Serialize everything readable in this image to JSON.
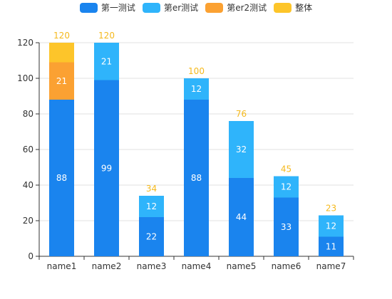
{
  "chart_data": {
    "type": "bar",
    "stacked": true,
    "categories": [
      "name1",
      "name2",
      "name3",
      "name4",
      "name5",
      "name6",
      "name7"
    ],
    "series": [
      {
        "name": "第一测试",
        "color": "#1a84ee",
        "values": [
          88,
          99,
          22,
          88,
          44,
          33,
          11
        ]
      },
      {
        "name": "第er测试",
        "color": "#2fb4fb",
        "values": [
          0,
          21,
          12,
          12,
          32,
          12,
          12
        ]
      },
      {
        "name": "第er2测试",
        "color": "#fba132",
        "values": [
          21,
          0,
          0,
          0,
          0,
          0,
          0
        ]
      },
      {
        "name": "整体",
        "color": "#fdc52a",
        "values": [
          11,
          0,
          0,
          0,
          0,
          0,
          0
        ]
      }
    ],
    "totals": [
      120,
      120,
      34,
      100,
      76,
      45,
      23
    ],
    "total_label_color": "#f5b91c",
    "ylim": [
      0,
      120
    ],
    "yticks": [
      0,
      20,
      40,
      60,
      80,
      100,
      120
    ],
    "grid": true,
    "legend_position": "top-center",
    "title": "",
    "xlabel": "",
    "ylabel": ""
  }
}
